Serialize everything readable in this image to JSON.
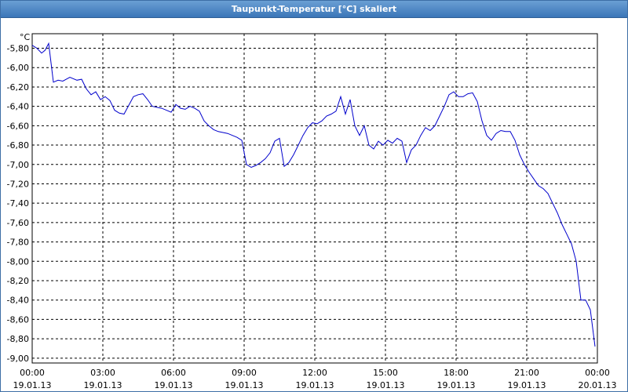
{
  "window": {
    "title": "Taupunkt-Temperatur [°C] skaliert"
  },
  "chart_data": {
    "type": "line",
    "title": "Taupunkt-Temperatur [°C] skaliert",
    "ylabel": "°C",
    "ylim": [
      -9.05,
      -5.65
    ],
    "grid": true,
    "y_ticks": [
      "-5,80",
      "-6,00",
      "-6,20",
      "-6,40",
      "-6,60",
      "-6,80",
      "-7,00",
      "-7,20",
      "-7,40",
      "-7,60",
      "-7,80",
      "-8,00",
      "-8,20",
      "-8,40",
      "-8,60",
      "-8,80",
      "-9,00"
    ],
    "x_ticks": [
      {
        "time": "00:00",
        "date": "19.01.13"
      },
      {
        "time": "03:00",
        "date": "19.01.13"
      },
      {
        "time": "06:00",
        "date": "19.01.13"
      },
      {
        "time": "09:00",
        "date": "19.01.13"
      },
      {
        "time": "12:00",
        "date": "19.01.13"
      },
      {
        "time": "15:00",
        "date": "19.01.13"
      },
      {
        "time": "18:00",
        "date": "19.01.13"
      },
      {
        "time": "21:00",
        "date": "19.01.13"
      },
      {
        "time": "00:00",
        "date": "20.01.13"
      }
    ],
    "series": [
      {
        "color": "#0000cc",
        "x_hours": [
          0,
          0.2,
          0.4,
          0.55,
          0.7,
          0.9,
          1.1,
          1.3,
          1.6,
          1.9,
          2.1,
          2.3,
          2.5,
          2.7,
          2.9,
          3.1,
          3.3,
          3.5,
          3.7,
          3.9,
          4.1,
          4.3,
          4.5,
          4.7,
          4.9,
          5.1,
          5.3,
          5.5,
          5.7,
          5.9,
          6.1,
          6.3,
          6.5,
          6.7,
          6.9,
          7.1,
          7.3,
          7.5,
          7.7,
          7.9,
          8.1,
          8.3,
          8.5,
          8.7,
          8.9,
          9.1,
          9.3,
          9.5,
          9.7,
          9.9,
          10.1,
          10.3,
          10.5,
          10.7,
          10.9,
          11.1,
          11.3,
          11.5,
          11.7,
          11.9,
          12.1,
          12.3,
          12.5,
          12.7,
          12.9,
          13.1,
          13.3,
          13.5,
          13.7,
          13.9,
          14.1,
          14.3,
          14.5,
          14.7,
          14.9,
          15.1,
          15.3,
          15.5,
          15.7,
          15.9,
          16.1,
          16.3,
          16.5,
          16.7,
          16.9,
          17.1,
          17.3,
          17.5,
          17.7,
          17.9,
          18.1,
          18.3,
          18.5,
          18.7,
          18.9,
          19.1,
          19.3,
          19.5,
          19.7,
          19.9,
          20.1,
          20.3,
          20.5,
          20.7,
          20.9,
          21.1,
          21.3,
          21.5,
          21.7,
          21.9,
          22.1,
          22.3,
          22.5,
          22.7,
          22.9,
          23.1,
          23.3,
          23.5,
          23.7,
          23.9
        ],
        "values": [
          -5.77,
          -5.8,
          -5.85,
          -5.82,
          -5.75,
          -6.15,
          -6.13,
          -6.14,
          -6.1,
          -6.13,
          -6.12,
          -6.22,
          -6.28,
          -6.25,
          -6.33,
          -6.3,
          -6.34,
          -6.44,
          -6.47,
          -6.48,
          -6.39,
          -6.3,
          -6.28,
          -6.27,
          -6.33,
          -6.4,
          -6.41,
          -6.42,
          -6.44,
          -6.46,
          -6.38,
          -6.42,
          -6.43,
          -6.4,
          -6.42,
          -6.45,
          -6.55,
          -6.6,
          -6.64,
          -6.66,
          -6.67,
          -6.68,
          -6.7,
          -6.72,
          -6.75,
          -7.0,
          -7.03,
          -7.01,
          -6.98,
          -6.94,
          -6.88,
          -6.76,
          -6.73,
          -7.02,
          -6.98,
          -6.9,
          -6.8,
          -6.7,
          -6.62,
          -6.57,
          -6.58,
          -6.55,
          -6.5,
          -6.48,
          -6.45,
          -6.3,
          -6.48,
          -6.33,
          -6.6,
          -6.7,
          -6.6,
          -6.8,
          -6.84,
          -6.76,
          -6.8,
          -6.75,
          -6.78,
          -6.73,
          -6.76,
          -6.98,
          -6.85,
          -6.8,
          -6.7,
          -6.62,
          -6.65,
          -6.6,
          -6.5,
          -6.4,
          -6.28,
          -6.25,
          -6.3,
          -6.3,
          -6.27,
          -6.26,
          -6.35,
          -6.55,
          -6.7,
          -6.75,
          -6.68,
          -6.65,
          -6.66,
          -6.66,
          -6.75,
          -6.9,
          -7.0,
          -7.08,
          -7.15,
          -7.22,
          -7.25,
          -7.3,
          -7.4,
          -7.5,
          -7.62,
          -7.72,
          -7.82,
          -8.0,
          -8.4,
          -8.4,
          -8.5,
          -8.88
        ]
      }
    ]
  }
}
